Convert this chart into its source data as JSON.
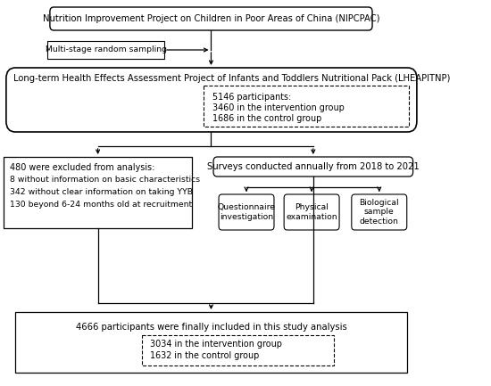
{
  "title_box": "Nutrition Improvement Project on Children in Poor Areas of China (NIPCPAC)",
  "sampling_box": "Multi-stage random sampling",
  "lheap_box": "Long-term Health Effects Assessment Project of Infants and Toddlers Nutritional Pack (LHEAPITNP)",
  "participants_line1": "5146 participants:",
  "participants_line2": "3460 in the intervention group",
  "participants_line3": "1686 in the control group",
  "excluded_line1": "480 were excluded from analysis:",
  "excluded_line2": "8 without information on basic characteristics",
  "excluded_line3": "342 without clear information on taking YYB",
  "excluded_line4": "130 beyond 6-24 months old at recruitment",
  "surveys_box": "Surveys conducted annually from 2018 to 2021",
  "q_box": "Questionnaire\ninvestigation",
  "p_box": "Physical\nexamination",
  "b_box": "Biological\nsample\ndetection",
  "final_line1": "4666 participants were finally included in this study analysis",
  "final_line2": "3034 in the intervention group",
  "final_line3": "1632 in the control group",
  "bg_color": "#ffffff",
  "font_size": 7.2
}
